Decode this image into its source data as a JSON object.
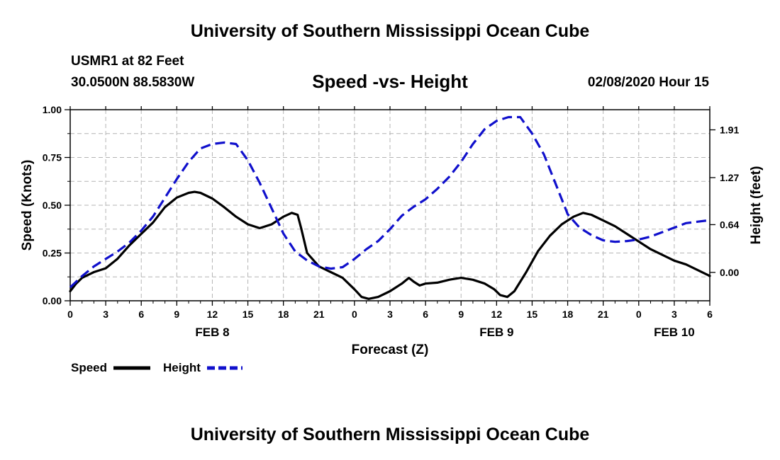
{
  "header": {
    "title": "University of Southern Mississippi Ocean Cube",
    "station": "USMR1 at 82 Feet",
    "coords": "30.0500N 88.5830W",
    "subtitle": "Speed -vs- Height",
    "datestamp": "02/08/2020 Hour 15"
  },
  "footer": {
    "title": "University of Southern Mississippi Ocean Cube"
  },
  "colors": {
    "speed": "#000000",
    "height": "#1010cc",
    "grid": "#b4b4b4"
  },
  "chart_data": {
    "type": "line",
    "xlabel": "Forecast (Z)",
    "ylabel": "Speed (Knots)",
    "y2label": "Height (feet)",
    "xlim": [
      0,
      54
    ],
    "ylim": [
      0,
      1.0
    ],
    "y2lim": [
      -0.38,
      2.18
    ],
    "x_ticks": [
      0,
      3,
      6,
      9,
      12,
      15,
      18,
      21,
      24,
      27,
      30,
      33,
      36,
      39,
      42,
      45,
      48,
      51,
      54
    ],
    "x_tick_labels": [
      "0",
      "3",
      "6",
      "9",
      "12",
      "15",
      "18",
      "21",
      "0",
      "3",
      "6",
      "9",
      "12",
      "15",
      "18",
      "21",
      "0",
      "3",
      "6"
    ],
    "date_labels": [
      {
        "x": 12,
        "label": "FEB 8"
      },
      {
        "x": 36,
        "label": "FEB 9"
      },
      {
        "x": 51,
        "label": "FEB 10"
      }
    ],
    "y_ticks": [
      0,
      0.25,
      0.5,
      0.75,
      1.0
    ],
    "y_tick_labels": [
      "0.00",
      "0.25",
      "0.50",
      "0.75",
      "1.00"
    ],
    "y2_ticks": [
      0,
      0.64,
      1.27,
      1.91
    ],
    "y2_tick_labels": [
      "0.00",
      "0.64",
      "1.27",
      "1.91"
    ],
    "grid": true,
    "legend_position": "bottom-left",
    "series": [
      {
        "name": "Speed",
        "axis": "left",
        "style": "solid",
        "points": [
          [
            0,
            0.05
          ],
          [
            0.5,
            0.09
          ],
          [
            1,
            0.12
          ],
          [
            2,
            0.15
          ],
          [
            3,
            0.17
          ],
          [
            4,
            0.22
          ],
          [
            5,
            0.29
          ],
          [
            6,
            0.35
          ],
          [
            7,
            0.41
          ],
          [
            8,
            0.49
          ],
          [
            9,
            0.54
          ],
          [
            10,
            0.565
          ],
          [
            10.5,
            0.57
          ],
          [
            11,
            0.565
          ],
          [
            12,
            0.535
          ],
          [
            13,
            0.49
          ],
          [
            14,
            0.44
          ],
          [
            15,
            0.4
          ],
          [
            16,
            0.38
          ],
          [
            17,
            0.4
          ],
          [
            18,
            0.44
          ],
          [
            18.7,
            0.46
          ],
          [
            19.2,
            0.45
          ],
          [
            19.5,
            0.38
          ],
          [
            20,
            0.25
          ],
          [
            21,
            0.18
          ],
          [
            22,
            0.15
          ],
          [
            23,
            0.12
          ],
          [
            24,
            0.06
          ],
          [
            24.6,
            0.02
          ],
          [
            25.2,
            0.01
          ],
          [
            26,
            0.02
          ],
          [
            27,
            0.05
          ],
          [
            28,
            0.09
          ],
          [
            28.6,
            0.12
          ],
          [
            29,
            0.1
          ],
          [
            29.5,
            0.08
          ],
          [
            30,
            0.09
          ],
          [
            31,
            0.095
          ],
          [
            32,
            0.11
          ],
          [
            33,
            0.12
          ],
          [
            34,
            0.11
          ],
          [
            35,
            0.09
          ],
          [
            35.8,
            0.06
          ],
          [
            36.3,
            0.03
          ],
          [
            36.9,
            0.02
          ],
          [
            37.5,
            0.05
          ],
          [
            38.5,
            0.15
          ],
          [
            39.5,
            0.26
          ],
          [
            40.5,
            0.34
          ],
          [
            41.5,
            0.4
          ],
          [
            42.5,
            0.44
          ],
          [
            43.3,
            0.46
          ],
          [
            44,
            0.45
          ],
          [
            45,
            0.42
          ],
          [
            46,
            0.39
          ],
          [
            47,
            0.35
          ],
          [
            48,
            0.31
          ],
          [
            49,
            0.27
          ],
          [
            50,
            0.24
          ],
          [
            51,
            0.21
          ],
          [
            52,
            0.19
          ],
          [
            53,
            0.16
          ],
          [
            54,
            0.13
          ]
        ]
      },
      {
        "name": "Height",
        "axis": "right",
        "style": "dashed",
        "points": [
          [
            0,
            -0.2
          ],
          [
            1,
            -0.05
          ],
          [
            2,
            0.08
          ],
          [
            3,
            0.18
          ],
          [
            4,
            0.28
          ],
          [
            5,
            0.4
          ],
          [
            6,
            0.56
          ],
          [
            7,
            0.75
          ],
          [
            8,
            1.0
          ],
          [
            9,
            1.25
          ],
          [
            10,
            1.48
          ],
          [
            11,
            1.66
          ],
          [
            12,
            1.72
          ],
          [
            13,
            1.74
          ],
          [
            14,
            1.72
          ],
          [
            15,
            1.5
          ],
          [
            16,
            1.2
          ],
          [
            17,
            0.86
          ],
          [
            18,
            0.52
          ],
          [
            19,
            0.28
          ],
          [
            20,
            0.16
          ],
          [
            21,
            0.08
          ],
          [
            22,
            0.05
          ],
          [
            23,
            0.07
          ],
          [
            24,
            0.18
          ],
          [
            25,
            0.31
          ],
          [
            26,
            0.42
          ],
          [
            27,
            0.58
          ],
          [
            28,
            0.76
          ],
          [
            29,
            0.88
          ],
          [
            30,
            0.98
          ],
          [
            31,
            1.12
          ],
          [
            32,
            1.28
          ],
          [
            33,
            1.48
          ],
          [
            34,
            1.72
          ],
          [
            35,
            1.92
          ],
          [
            36,
            2.03
          ],
          [
            37,
            2.08
          ],
          [
            38,
            2.08
          ],
          [
            39,
            1.86
          ],
          [
            40,
            1.58
          ],
          [
            41,
            1.18
          ],
          [
            42,
            0.78
          ],
          [
            43,
            0.6
          ],
          [
            44,
            0.5
          ],
          [
            45,
            0.43
          ],
          [
            46,
            0.41
          ],
          [
            47,
            0.42
          ],
          [
            48,
            0.44
          ],
          [
            49,
            0.48
          ],
          [
            50,
            0.54
          ],
          [
            51,
            0.6
          ],
          [
            52,
            0.66
          ],
          [
            53,
            0.68
          ],
          [
            54,
            0.7
          ]
        ]
      }
    ]
  }
}
